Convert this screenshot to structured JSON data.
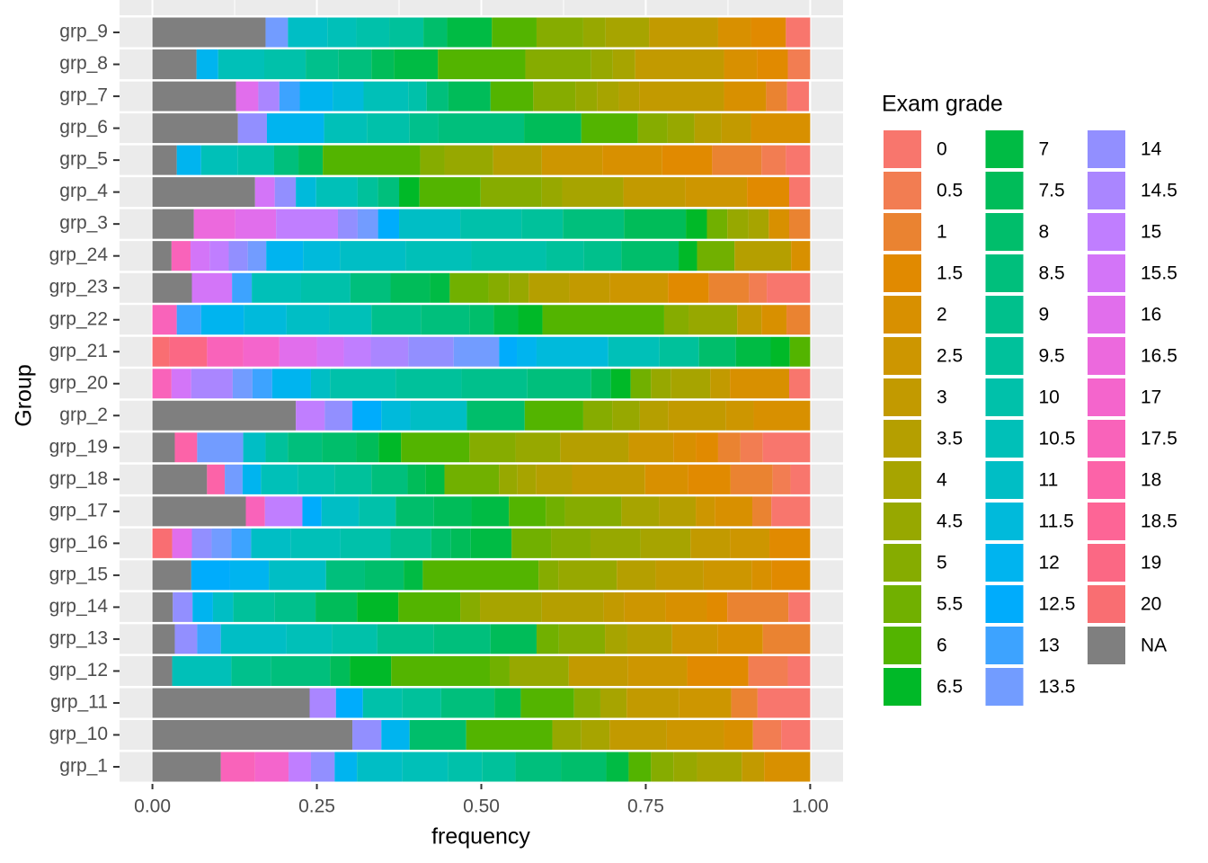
{
  "chart_data": {
    "type": "stacked_bar_horizontal",
    "x_label": "frequency",
    "y_label": "Group",
    "legend_title": "Exam grade",
    "categories": [
      "grp_1",
      "grp_10",
      "grp_11",
      "grp_12",
      "grp_13",
      "grp_14",
      "grp_15",
      "grp_16",
      "grp_17",
      "grp_18",
      "grp_19",
      "grp_2",
      "grp_20",
      "grp_21",
      "grp_22",
      "grp_23",
      "grp_24",
      "grp_3",
      "grp_4",
      "grp_5",
      "grp_6",
      "grp_7",
      "grp_8",
      "grp_9"
    ],
    "xlim": [
      -0.05,
      1.05
    ],
    "xticks": [
      {
        "value": 0,
        "label": "0.00"
      },
      {
        "value": 0.25,
        "label": "0.25"
      },
      {
        "value": 0.5,
        "label": "0.50"
      },
      {
        "value": 0.75,
        "label": "0.75"
      },
      {
        "value": 1,
        "label": "1.00"
      }
    ],
    "grid": true,
    "series": [
      {
        "name": "0",
        "color": "#F8766D",
        "values": [
          0,
          0.044,
          0.08,
          0.034,
          0,
          0.033,
          0,
          0,
          0.059,
          0.03,
          0.072,
          0,
          0.032,
          0,
          0,
          0.066,
          0,
          0,
          0.032,
          0.037,
          0,
          0.033,
          0,
          0.037
        ]
      },
      {
        "name": "0.5",
        "color": "#F27D52",
        "values": [
          0,
          0.043,
          0,
          0.06,
          0,
          0,
          0,
          0,
          0,
          0.027,
          0.034,
          0,
          0,
          0,
          0,
          0.027,
          0,
          0,
          0,
          0.037,
          0,
          0,
          0.034,
          0
        ]
      },
      {
        "name": "1",
        "color": "#EA8331",
        "values": [
          0,
          0,
          0.04,
          0,
          0.072,
          0.093,
          0,
          0,
          0.029,
          0.064,
          0.034,
          0,
          0,
          0,
          0.036,
          0.061,
          0,
          0.032,
          0,
          0.075,
          0,
          0.032,
          0,
          0
        ]
      },
      {
        "name": "1.5",
        "color": "#E18A00",
        "values": [
          0,
          0,
          0,
          0.093,
          0,
          0.031,
          0.059,
          0.062,
          0,
          0.065,
          0.034,
          0,
          0,
          0,
          0,
          0.062,
          0,
          0,
          0.064,
          0.076,
          0,
          0,
          0.047,
          0.053
        ]
      },
      {
        "name": "2",
        "color": "#D89000",
        "values": [
          0.07,
          0.044,
          0,
          0,
          0.069,
          0.063,
          0.03,
          0,
          0.057,
          0.065,
          0.034,
          0.086,
          0.09,
          0,
          0.038,
          0,
          0.029,
          0.031,
          0,
          0.091,
          0.09,
          0.064,
          0.05,
          0.05
        ]
      },
      {
        "name": "2.5",
        "color": "#CD9600",
        "values": [
          0,
          0.087,
          0.079,
          0.09,
          0.069,
          0.063,
          0.073,
          0.06,
          0.029,
          0,
          0.068,
          0.042,
          0,
          0,
          0,
          0.089,
          0,
          0,
          0.094,
          0.092,
          0,
          0,
          0,
          0
        ]
      },
      {
        "name": "3",
        "color": "#C29A00",
        "values": [
          0.034,
          0.087,
          0.08,
          0.09,
          0,
          0.031,
          0.073,
          0.06,
          0,
          0.111,
          0,
          0.088,
          0.03,
          0,
          0.037,
          0.061,
          0,
          0,
          0.094,
          0,
          0.045,
          0.129,
          0.135,
          0.105
        ]
      },
      {
        "name": "3.5",
        "color": "#B59F00",
        "values": [
          0,
          0,
          0,
          0,
          0.068,
          0.094,
          0.059,
          0,
          0.056,
          0.055,
          0.104,
          0.043,
          0,
          0,
          0,
          0.062,
          0.086,
          0,
          0,
          0.074,
          0.041,
          0.031,
          0,
          0
        ]
      },
      {
        "name": "4",
        "color": "#A7A400",
        "values": [
          0.068,
          0.043,
          0.04,
          0,
          0.034,
          0.094,
          0,
          0.076,
          0.057,
          0.028,
          0,
          0,
          0.06,
          0,
          0,
          0,
          0,
          0.031,
          0.093,
          0,
          0,
          0.033,
          0.034,
          0.066
        ]
      },
      {
        "name": "4.5",
        "color": "#97A800",
        "values": [
          0.036,
          0.044,
          0,
          0.09,
          0,
          0,
          0.089,
          0.076,
          0,
          0.028,
          0.068,
          0.042,
          0.03,
          0,
          0.074,
          0.03,
          0,
          0.032,
          0.031,
          0.074,
          0.041,
          0.033,
          0.033,
          0.034
        ]
      },
      {
        "name": "5",
        "color": "#86AC00",
        "values": [
          0.034,
          0,
          0.04,
          0,
          0.07,
          0.03,
          0.03,
          0.06,
          0.086,
          0,
          0.07,
          0.044,
          0,
          0,
          0.037,
          0.031,
          0,
          0,
          0.093,
          0.037,
          0.045,
          0.064,
          0.1,
          0.071
        ]
      },
      {
        "name": "5.5",
        "color": "#71B000",
        "values": [
          0,
          0,
          0,
          0.03,
          0.034,
          0,
          0,
          0.06,
          0.029,
          0.083,
          0,
          0,
          0.031,
          0,
          0,
          0.059,
          0.057,
          0.031,
          0,
          0,
          0,
          0,
          0,
          0
        ]
      },
      {
        "name": "6",
        "color": "#53B400",
        "values": [
          0.034,
          0.131,
          0.081,
          0.15,
          0,
          0.094,
          0.176,
          0,
          0.056,
          0,
          0.104,
          0.089,
          0,
          0.031,
          0.185,
          0,
          0,
          0,
          0.093,
          0.148,
          0.086,
          0.065,
          0.133,
          0.068
        ]
      },
      {
        "name": "6.5",
        "color": "#00B928",
        "values": [
          0,
          0,
          0,
          0.063,
          0,
          0.063,
          0,
          0,
          0,
          0,
          0.034,
          0,
          0.03,
          0.029,
          0.037,
          0,
          0.028,
          0.032,
          0.031,
          0,
          0,
          0,
          0,
          0
        ]
      },
      {
        "name": "7",
        "color": "#00BB44",
        "values": [
          0.034,
          0,
          0,
          0,
          0,
          0,
          0.029,
          0.062,
          0.057,
          0.029,
          0,
          0,
          0,
          0.053,
          0.037,
          0.03,
          0,
          0,
          0,
          0,
          0,
          0,
          0.067,
          0.068
        ]
      },
      {
        "name": "7.5",
        "color": "#00BC59",
        "values": [
          0,
          0,
          0.04,
          0.03,
          0.07,
          0.063,
          0,
          0.03,
          0.057,
          0.027,
          0.034,
          0,
          0.03,
          0,
          0,
          0.06,
          0,
          0.094,
          0,
          0.037,
          0.087,
          0.064,
          0.034,
          0
        ]
      },
      {
        "name": "8",
        "color": "#00BE6B",
        "values": [
          0.069,
          0.086,
          0,
          0,
          0,
          0,
          0.059,
          0.03,
          0.058,
          0,
          0.052,
          0.088,
          0,
          0.056,
          0.037,
          0,
          0.087,
          0,
          0,
          0,
          0,
          0,
          0,
          0.036
        ]
      },
      {
        "name": "8.5",
        "color": "#00BF7C",
        "values": [
          0.069,
          0,
          0.081,
          0.09,
          0.086,
          0,
          0.059,
          0,
          0,
          0.055,
          0.052,
          0,
          0.097,
          0,
          0.074,
          0.061,
          0,
          0.093,
          0.032,
          0.037,
          0.13,
          0.033,
          0.05,
          0
        ]
      },
      {
        "name": "9",
        "color": "#00C08C",
        "values": [
          0,
          0,
          0,
          0.06,
          0.086,
          0.062,
          0,
          0.062,
          0,
          0,
          0,
          0,
          0.1,
          0,
          0.075,
          0,
          0.057,
          0,
          0,
          0,
          0.044,
          0,
          0.05,
          0
        ]
      },
      {
        "name": "9.5",
        "color": "#00C19B",
        "values": [
          0.051,
          0,
          0.059,
          0,
          0,
          0.063,
          0,
          0,
          0,
          0.056,
          0.034,
          0,
          0.1,
          0.06,
          0,
          0,
          0.057,
          0.063,
          0.031,
          0,
          0,
          0,
          0,
          0.052
        ]
      },
      {
        "name": "10",
        "color": "#00C1AA",
        "values": [
          0.052,
          0,
          0.06,
          0,
          0.069,
          0,
          0,
          0.076,
          0.056,
          0.056,
          0,
          0,
          0.1,
          0,
          0,
          0.075,
          0.114,
          0.093,
          0,
          0.055,
          0.065,
          0.028,
          0.063,
          0.05
        ]
      },
      {
        "name": "10.5",
        "color": "#00C0B8",
        "values": [
          0.069,
          0,
          0,
          0.09,
          0.069,
          0,
          0,
          0.076,
          0,
          0.056,
          0,
          0,
          0,
          0.078,
          0.064,
          0.075,
          0.1,
          0,
          0.063,
          0.056,
          0.065,
          0.068,
          0.07,
          0.044
        ]
      },
      {
        "name": "11",
        "color": "#00BEC5",
        "values": [
          0.069,
          0,
          0,
          0,
          0.1,
          0.031,
          0.087,
          0.06,
          0.057,
          0,
          0.034,
          0.086,
          0.029,
          0,
          0.065,
          0,
          0.1,
          0.093,
          0,
          0,
          0,
          0,
          0,
          0.06
        ]
      },
      {
        "name": "11.5",
        "color": "#00BADB",
        "values": [
          0,
          0,
          0,
          0,
          0,
          0,
          0,
          0,
          0,
          0,
          0,
          0.044,
          0,
          0.109,
          0.065,
          0,
          0.056,
          0,
          0.031,
          0,
          0,
          0.047,
          0,
          0
        ]
      },
      {
        "name": "12",
        "color": "#00B4EF",
        "values": [
          0.034,
          0.043,
          0,
          0,
          0,
          0.031,
          0.059,
          0,
          0,
          0.028,
          0,
          0,
          0.059,
          0.03,
          0.065,
          0,
          0.056,
          0,
          0,
          0.037,
          0.087,
          0.05,
          0.033,
          0
        ]
      },
      {
        "name": "12.5",
        "color": "#00ACFC",
        "values": [
          0,
          0,
          0.041,
          0,
          0,
          0,
          0.059,
          0,
          0.029,
          0,
          0,
          0.044,
          0,
          0.027,
          0,
          0,
          0,
          0.032,
          0,
          0,
          0,
          0,
          0,
          0
        ]
      },
      {
        "name": "13",
        "color": "#3DA3FF",
        "values": [
          0,
          0,
          0,
          0,
          0.036,
          0,
          0,
          0.03,
          0,
          0,
          0,
          0,
          0.03,
          0,
          0.037,
          0.03,
          0,
          0,
          0,
          0,
          0,
          0.031,
          0,
          0
        ]
      },
      {
        "name": "13.5",
        "color": "#729CFF",
        "values": [
          0,
          0,
          0,
          0,
          0,
          0,
          0,
          0.03,
          0,
          0.027,
          0.07,
          0,
          0.03,
          0.069,
          0,
          0,
          0.028,
          0.031,
          0,
          0,
          0,
          0,
          0,
          0.034
        ]
      },
      {
        "name": "14",
        "color": "#928FFF",
        "values": [
          0.036,
          0.044,
          0,
          0,
          0.034,
          0.03,
          0,
          0.03,
          0,
          0,
          0,
          0.042,
          0,
          0.069,
          0,
          0,
          0.029,
          0.03,
          0.032,
          0,
          0.044,
          0,
          0,
          0
        ]
      },
      {
        "name": "14.5",
        "color": "#AA86FF",
        "values": [
          0,
          0,
          0.04,
          0,
          0,
          0,
          0,
          0,
          0,
          0,
          0,
          0,
          0.063,
          0.057,
          0,
          0,
          0,
          0,
          0,
          0,
          0,
          0.032,
          0,
          0
        ]
      },
      {
        "name": "15",
        "color": "#C07EFF",
        "values": [
          0.034,
          0,
          0,
          0,
          0,
          0,
          0,
          0,
          0.057,
          0,
          0,
          0.044,
          0,
          0.041,
          0,
          0,
          0.029,
          0.094,
          0,
          0,
          0,
          0,
          0,
          0
        ]
      },
      {
        "name": "15.5",
        "color": "#D375F8",
        "values": [
          0,
          0,
          0,
          0,
          0,
          0,
          0,
          0,
          0,
          0,
          0,
          0,
          0.03,
          0.041,
          0,
          0.061,
          0.029,
          0,
          0.03,
          0,
          0,
          0,
          0,
          0
        ]
      },
      {
        "name": "16",
        "color": "#E16EEC",
        "values": [
          0,
          0,
          0,
          0,
          0,
          0,
          0,
          0.03,
          0,
          0,
          0,
          0,
          0,
          0.057,
          0,
          0,
          0,
          0.062,
          0,
          0,
          0,
          0.034,
          0,
          0
        ]
      },
      {
        "name": "16.5",
        "color": "#EC69DD",
        "values": [
          0,
          0,
          0,
          0,
          0,
          0,
          0,
          0,
          0,
          0,
          0,
          0,
          0,
          0,
          0,
          0,
          0,
          0.063,
          0,
          0,
          0,
          0,
          0,
          0
        ]
      },
      {
        "name": "17",
        "color": "#F465CC",
        "values": [
          0.051,
          0,
          0,
          0,
          0,
          0,
          0,
          0,
          0,
          0,
          0,
          0,
          0,
          0.055,
          0,
          0,
          0,
          0,
          0,
          0,
          0,
          0,
          0,
          0
        ]
      },
      {
        "name": "17.5",
        "color": "#F963BA",
        "values": [
          0.052,
          0,
          0,
          0,
          0,
          0,
          0,
          0,
          0.029,
          0,
          0,
          0,
          0.029,
          0.055,
          0.037,
          0,
          0.029,
          0,
          0,
          0,
          0,
          0,
          0,
          0
        ]
      },
      {
        "name": "18",
        "color": "#FC63A8",
        "values": [
          0,
          0,
          0,
          0,
          0,
          0,
          0,
          0,
          0,
          0.027,
          0.034,
          0,
          0,
          0,
          0,
          0,
          0,
          0,
          0,
          0,
          0,
          0,
          0,
          0
        ]
      },
      {
        "name": "18.5",
        "color": "#FD6596",
        "values": [
          0,
          0,
          0,
          0,
          0,
          0,
          0,
          0,
          0,
          0,
          0,
          0,
          0,
          0,
          0,
          0,
          0,
          0,
          0,
          0,
          0,
          0,
          0,
          0
        ]
      },
      {
        "name": "19",
        "color": "#FB6884",
        "values": [
          0,
          0,
          0,
          0,
          0,
          0,
          0,
          0,
          0,
          0,
          0,
          0,
          0,
          0.057,
          0,
          0,
          0,
          0,
          0,
          0,
          0,
          0,
          0,
          0
        ]
      },
      {
        "name": "20",
        "color": "#F96E72",
        "values": [
          0,
          0,
          0,
          0,
          0,
          0,
          0,
          0.03,
          0,
          0,
          0,
          0,
          0,
          0.026,
          0,
          0,
          0,
          0,
          0,
          0,
          0,
          0,
          0,
          0
        ]
      },
      {
        "name": "NA",
        "color": "#7F7F7F",
        "values": [
          0.104,
          0.304,
          0.239,
          0.03,
          0.034,
          0.031,
          0.059,
          0,
          0.142,
          0.083,
          0.034,
          0.218,
          0,
          0,
          0,
          0.06,
          0.029,
          0.063,
          0.156,
          0.037,
          0.13,
          0.127,
          0.067,
          0.172
        ]
      }
    ]
  }
}
